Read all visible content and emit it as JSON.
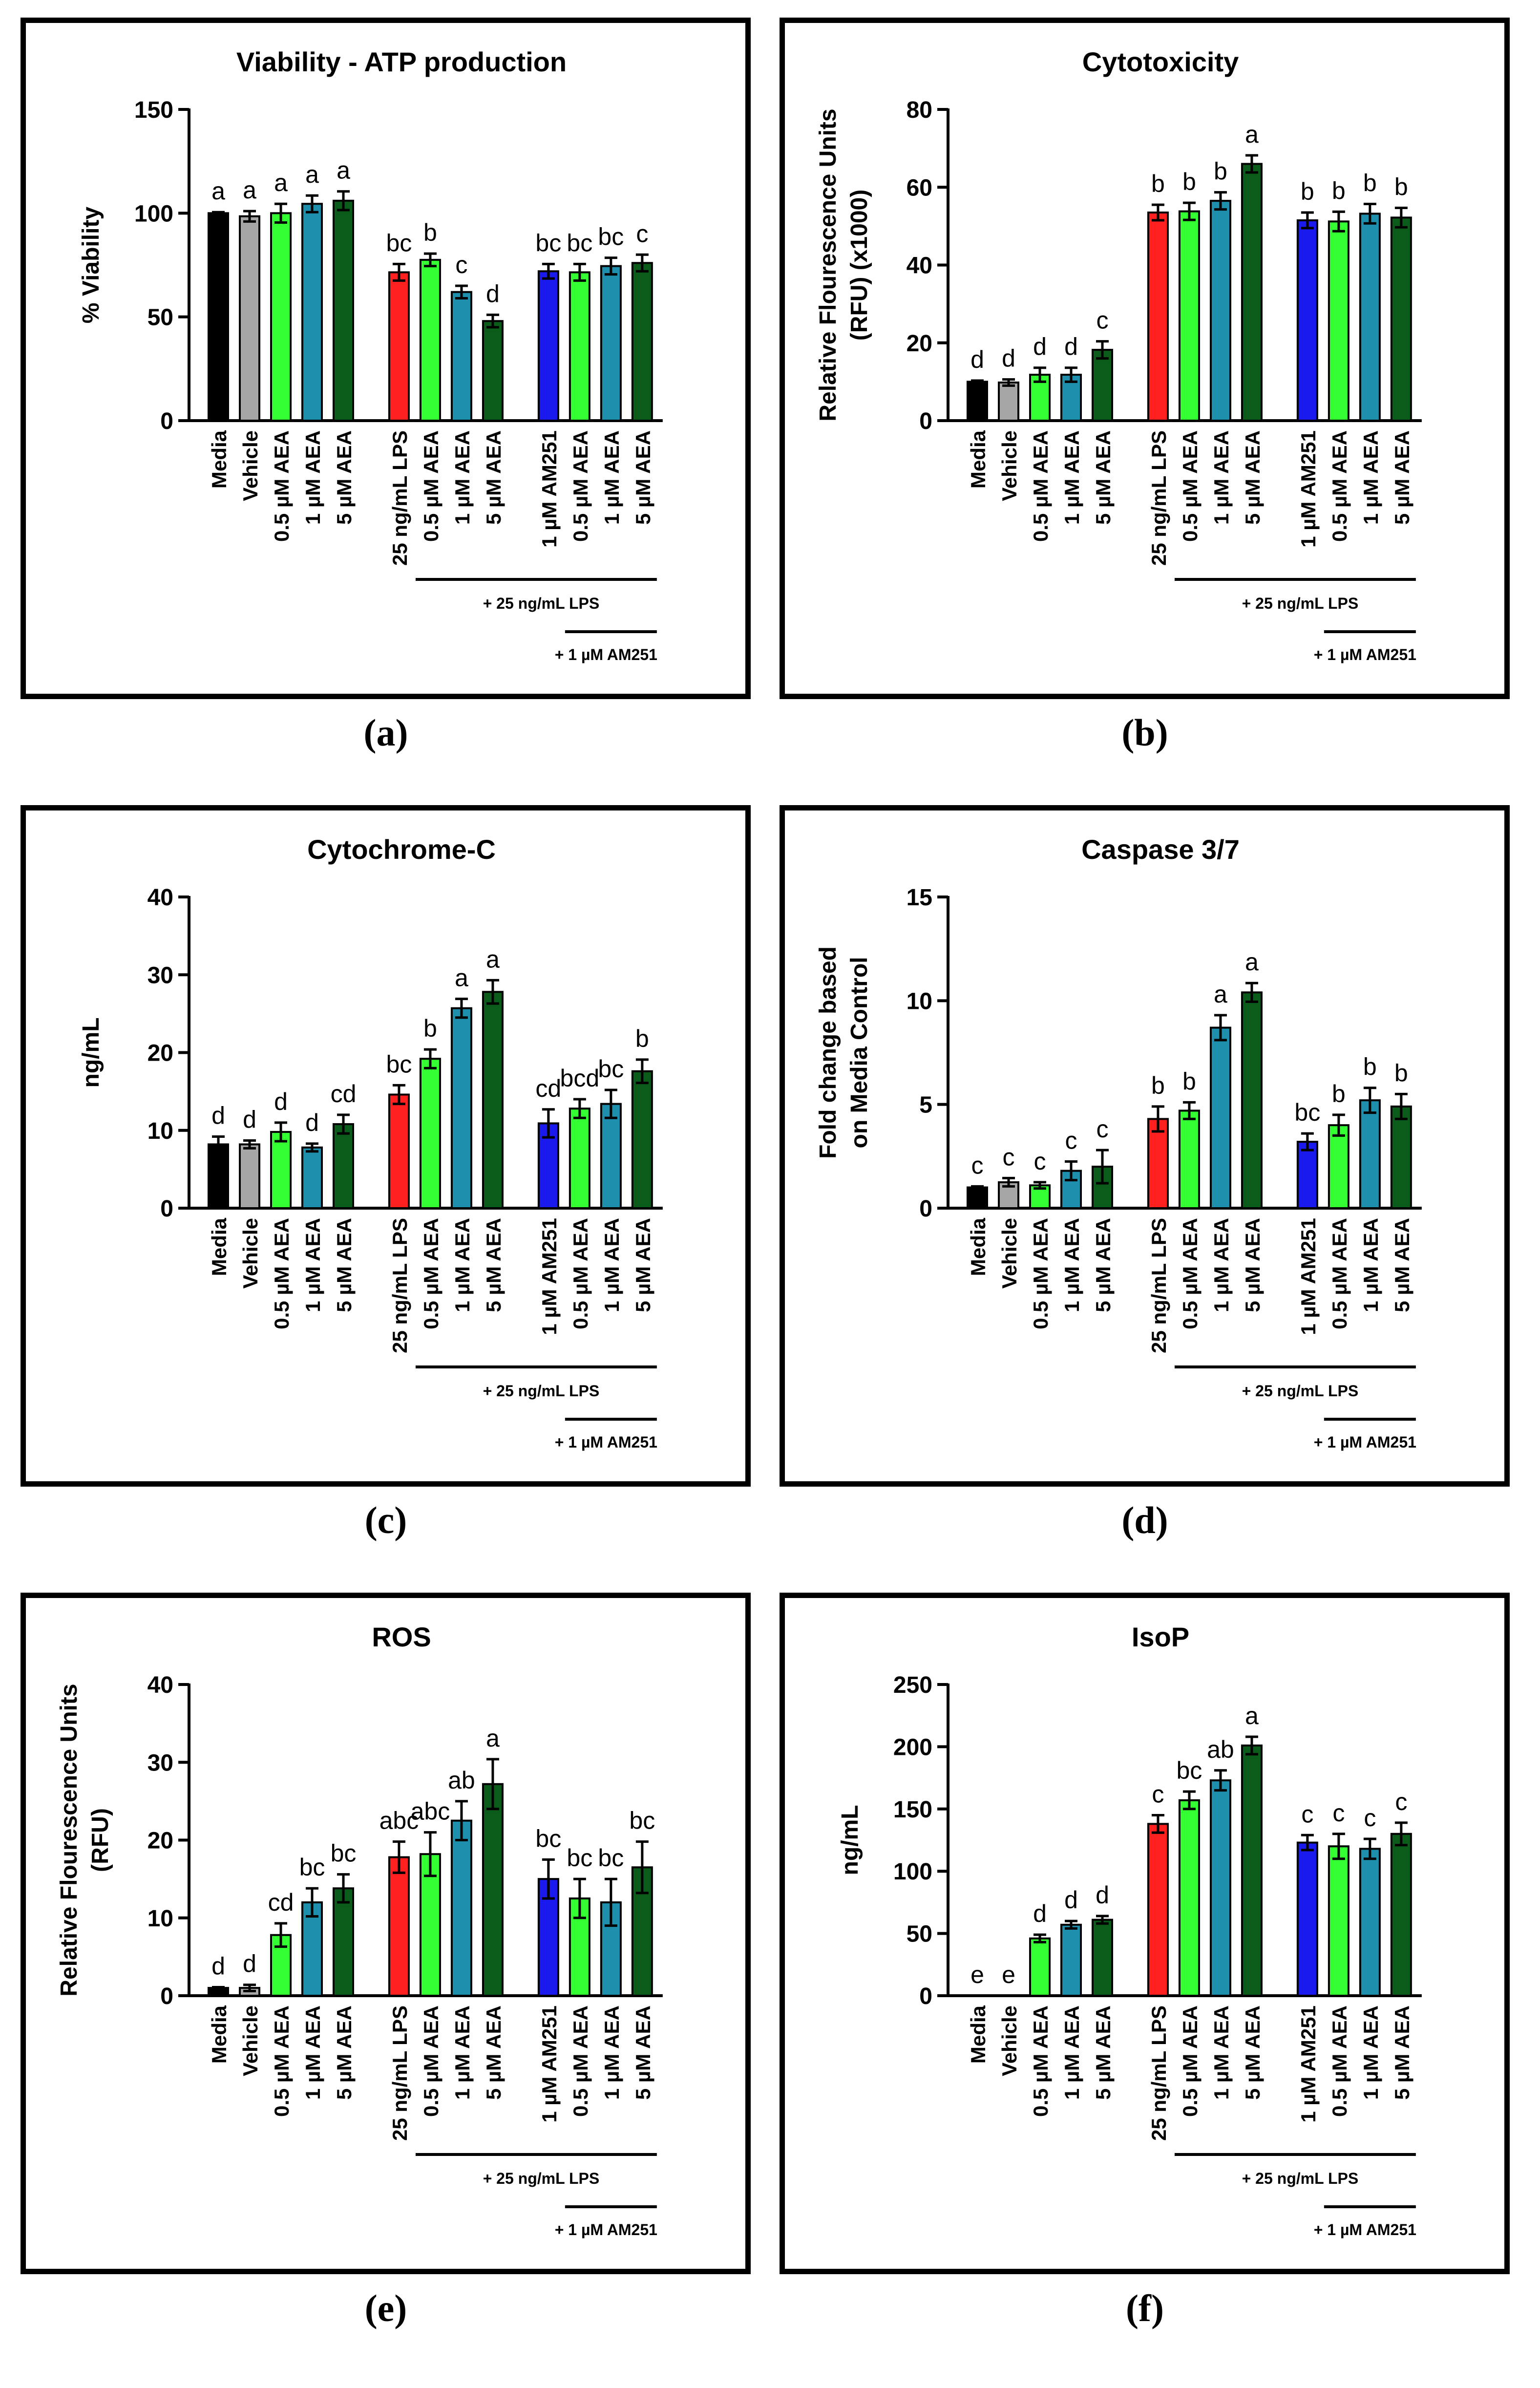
{
  "figure": {
    "panels": [
      {
        "caption": "(a)",
        "chart_data": {
          "type": "bar",
          "title": "Viability - ATP production",
          "ylabel": "% Viability",
          "ylim": [
            0,
            150
          ],
          "yticks": [
            0,
            50,
            100,
            150
          ],
          "categories": [
            "Media",
            "Vehicle",
            "0.5 µM AEA",
            "1 µM AEA",
            "5 µM AEA",
            "25 ng/mL LPS",
            "0.5 µM AEA",
            "1 µM AEA",
            "5 µM AEA",
            "1 µM AM251",
            "0.5 µM AEA",
            "1 µM AEA",
            "5 µM AEA"
          ],
          "values": [
            100,
            98.5,
            100,
            104.5,
            106,
            71.5,
            77.5,
            62,
            48,
            72,
            71.5,
            74.5,
            76
          ],
          "errors": [
            0.5,
            2.5,
            4.5,
            4,
            4.5,
            4,
            3,
            3,
            3,
            3.5,
            4,
            4,
            4
          ],
          "letters": [
            "a",
            "a",
            "a",
            "a",
            "a",
            "bc",
            "b",
            "c",
            "d",
            "bc",
            "bc",
            "bc",
            "c"
          ],
          "group_labels": {
            "lps": "+ 25 ng/mL LPS",
            "am251": "+ 1 µM AM251"
          }
        }
      },
      {
        "caption": "(b)",
        "chart_data": {
          "type": "bar",
          "title": "Cytotoxicity",
          "ylabel": [
            "Relative Flourescence Units",
            "(RFU) (x1000)"
          ],
          "ylim": [
            0,
            80
          ],
          "yticks": [
            0,
            20,
            40,
            60,
            80
          ],
          "categories": [
            "Media",
            "Vehicle",
            "0.5 µM AEA",
            "1 µM AEA",
            "5 µM AEA",
            "25 ng/mL LPS",
            "0.5 µM AEA",
            "1 µM AEA",
            "5 µM AEA",
            "1 µM AM251",
            "0.5 µM AEA",
            "1 µM AEA",
            "5 µM AEA"
          ],
          "values": [
            10,
            9.8,
            11.8,
            11.8,
            18.2,
            53.5,
            53.8,
            56.5,
            66,
            51.5,
            51.2,
            53.2,
            52.2
          ],
          "errors": [
            0.3,
            0.8,
            1.8,
            1.8,
            2.2,
            2,
            2.2,
            2.2,
            2.2,
            2,
            2.5,
            2.5,
            2.5
          ],
          "letters": [
            "d",
            "d",
            "d",
            "d",
            "c",
            "b",
            "b",
            "b",
            "a",
            "b",
            "b",
            "b",
            "b"
          ],
          "group_labels": {
            "lps": "+ 25 ng/mL LPS",
            "am251": "+ 1 µM AM251"
          }
        }
      },
      {
        "caption": "(c)",
        "chart_data": {
          "type": "bar",
          "title": "Cytochrome-C",
          "ylabel": "ng/mL",
          "ylim": [
            0,
            40
          ],
          "yticks": [
            0,
            10,
            20,
            30,
            40
          ],
          "categories": [
            "Media",
            "Vehicle",
            "0.5 µM AEA",
            "1 µM AEA",
            "5 µM AEA",
            "25 ng/mL LPS",
            "0.5 µM AEA",
            "1 µM AEA",
            "5 µM AEA",
            "1 µM AM251",
            "0.5 µM AEA",
            "1 µM AEA",
            "5 µM AEA"
          ],
          "values": [
            8.2,
            8.2,
            9.8,
            7.8,
            10.8,
            14.6,
            19.2,
            25.7,
            27.8,
            10.9,
            12.8,
            13.4,
            17.6
          ],
          "errors": [
            1,
            0.5,
            1.2,
            0.5,
            1.2,
            1.2,
            1.2,
            1.2,
            1.5,
            1.8,
            1.2,
            1.8,
            1.5
          ],
          "letters": [
            "d",
            "d",
            "d",
            "d",
            "cd",
            "bc",
            "b",
            "a",
            "a",
            "cd",
            "bcd",
            "bc",
            "b"
          ],
          "group_labels": {
            "lps": "+ 25 ng/mL LPS",
            "am251": "+ 1 µM AM251"
          }
        }
      },
      {
        "caption": "(d)",
        "chart_data": {
          "type": "bar",
          "title": "Caspase 3/7",
          "ylabel": [
            "Fold change based",
            "on Media Control"
          ],
          "ylim": [
            0,
            15
          ],
          "yticks": [
            0,
            5,
            10,
            15
          ],
          "categories": [
            "Media",
            "Vehicle",
            "0.5 µM AEA",
            "1 µM AEA",
            "5 µM AEA",
            "25 ng/mL LPS",
            "0.5 µM AEA",
            "1 µM AEA",
            "5 µM AEA",
            "1 µM AM251",
            "0.5 µM AEA",
            "1 µM AEA",
            "5 µM AEA"
          ],
          "values": [
            1,
            1.25,
            1.1,
            1.8,
            2,
            4.3,
            4.7,
            8.7,
            10.4,
            3.2,
            4,
            5.2,
            4.9
          ],
          "errors": [
            0.05,
            0.2,
            0.15,
            0.45,
            0.8,
            0.6,
            0.4,
            0.6,
            0.45,
            0.4,
            0.5,
            0.6,
            0.6
          ],
          "letters": [
            "c",
            "c",
            "c",
            "c",
            "c",
            "b",
            "b",
            "a",
            "a",
            "bc",
            "b",
            "b",
            "b"
          ],
          "group_labels": {
            "lps": "+ 25 ng/mL LPS",
            "am251": "+ 1 µM AM251"
          }
        }
      },
      {
        "caption": "(e)",
        "chart_data": {
          "type": "bar",
          "title": "ROS",
          "ylabel": [
            "Relative Flourescence Units",
            "(RFU)"
          ],
          "ylim": [
            0,
            40
          ],
          "yticks": [
            0,
            10,
            20,
            30,
            40
          ],
          "categories": [
            "Media",
            "Vehicle",
            "0.5 µM AEA",
            "1 µM AEA",
            "5 µM AEA",
            "25 ng/mL LPS",
            "0.5 µM AEA",
            "1 µM AEA",
            "5 µM AEA",
            "1 µM AM251",
            "0.5 µM AEA",
            "1 µM AEA",
            "5 µM AEA"
          ],
          "values": [
            1,
            1,
            7.8,
            12,
            13.8,
            17.8,
            18.2,
            22.5,
            27.2,
            15,
            12.5,
            12,
            16.5
          ],
          "errors": [
            0.1,
            0.4,
            1.5,
            1.8,
            1.8,
            2,
            2.8,
            2.5,
            3.2,
            2.5,
            2.5,
            3,
            3.3
          ],
          "letters": [
            "d",
            "d",
            "cd",
            "bc",
            "bc",
            "abc",
            "abc",
            "ab",
            "a",
            "bc",
            "bc",
            "bc",
            "bc"
          ],
          "group_labels": {
            "lps": "+ 25 ng/mL LPS",
            "am251": "+ 1 µM AM251"
          }
        }
      },
      {
        "caption": "(f)",
        "chart_data": {
          "type": "bar",
          "title": "IsoP",
          "ylabel": "ng/mL",
          "ylim": [
            0,
            250
          ],
          "yticks": [
            0,
            50,
            100,
            150,
            200,
            250
          ],
          "categories": [
            "Media",
            "Vehicle",
            "0.5 µM AEA",
            "1 µM AEA",
            "5 µM AEA",
            "25 ng/mL LPS",
            "0.5 µM AEA",
            "1 µM AEA",
            "5 µM AEA",
            "1 µM AM251",
            "0.5 µM AEA",
            "1 µM AEA",
            "5 µM AEA"
          ],
          "values": [
            0,
            0,
            46,
            57,
            61,
            138,
            157,
            173,
            201,
            123,
            120,
            118,
            130
          ],
          "errors": [
            0,
            0,
            3,
            3,
            3,
            7,
            7,
            8,
            7,
            6,
            10,
            8,
            9
          ],
          "letters": [
            "e",
            "e",
            "d",
            "d",
            "d",
            "c",
            "bc",
            "ab",
            "a",
            "c",
            "c",
            "c",
            "c"
          ],
          "group_labels": {
            "lps": "+ 25 ng/mL LPS",
            "am251": "+ 1 µM AM251"
          }
        }
      }
    ],
    "bar_colors": [
      "#000000",
      "#a6a6a6",
      "#33ff33",
      "#1f8fae",
      "#0b5c1a",
      "#ff2020",
      "#33ff33",
      "#1f8fae",
      "#0b5c1a",
      "#1a1aee",
      "#33ff33",
      "#1f8fae",
      "#0b5c1a"
    ]
  }
}
